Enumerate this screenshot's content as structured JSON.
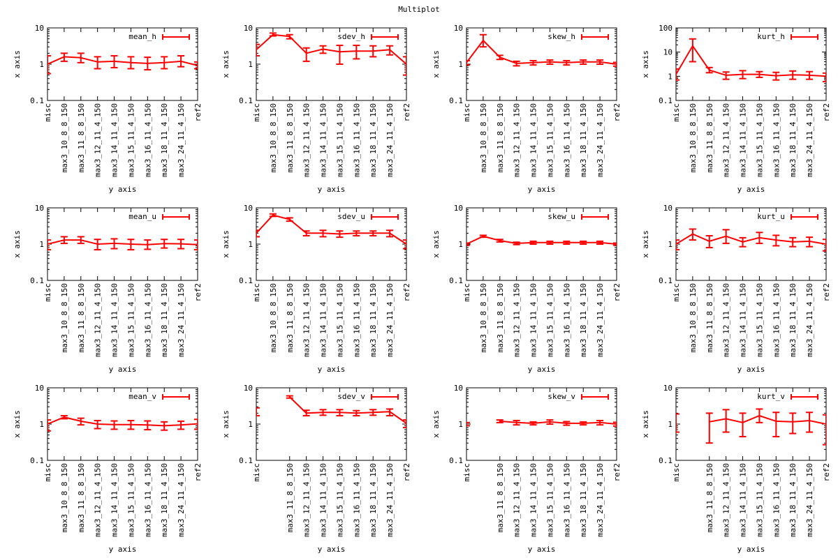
{
  "page": {
    "title": "Multiplot"
  },
  "style": {
    "series_color": "#ff0000",
    "axis_color": "#000000",
    "background": "#ffffff"
  },
  "chart_data": [
    {
      "type": "line",
      "legend": "mean_h",
      "legend_position": "top-right",
      "xlabel": "y axis",
      "ylabel": "x axis",
      "yscale": "log",
      "ylim": [
        0.1,
        10
      ],
      "yticks": [
        "0.1",
        "1",
        "10"
      ],
      "grid": false,
      "categories": [
        "misc",
        "max3_10_8_8_150",
        "max3_11_8_8_150",
        "max3_12_11_4_150",
        "max3_14_11_4_150",
        "max3_15_11_4_150",
        "max3_16_11_4_150",
        "max3_18_11_4_150",
        "max3_24_11_4_150",
        "ref2"
      ],
      "values": [
        1.0,
        1.6,
        1.5,
        1.15,
        1.2,
        1.1,
        1.05,
        1.1,
        1.2,
        0.92
      ],
      "err_low": [
        0.55,
        1.2,
        1.1,
        0.75,
        0.8,
        0.75,
        0.7,
        0.75,
        0.85,
        0.75
      ],
      "err_high": [
        1.7,
        2.0,
        2.0,
        1.6,
        1.7,
        1.6,
        1.55,
        1.6,
        1.7,
        1.15
      ]
    },
    {
      "type": "line",
      "legend": "sdev_h",
      "legend_position": "top-right",
      "xlabel": "y axis",
      "ylabel": "x axis",
      "yscale": "log",
      "ylim": [
        0.1,
        10
      ],
      "yticks": [
        "0.1",
        "1",
        "10"
      ],
      "grid": false,
      "categories": [
        "misc",
        "max3_10_8_8_150",
        "max3_11_8_8_150",
        "max3_12_11_4_150",
        "max3_14_11_4_150",
        "max3_15_11_4_150",
        "max3_16_11_4_150",
        "max3_18_11_4_150",
        "max3_24_11_4_150",
        "ref2"
      ],
      "values": [
        2.5,
        6.5,
        5.8,
        2.0,
        2.6,
        2.2,
        2.3,
        2.3,
        2.5,
        1.0
      ],
      "err_low": [
        1.7,
        6.0,
        5.0,
        1.2,
        2.0,
        1.0,
        1.4,
        1.6,
        1.8,
        0.5
      ],
      "err_high": [
        3.5,
        7.2,
        6.5,
        2.8,
        3.2,
        3.3,
        3.3,
        3.2,
        3.2,
        1.6
      ]
    },
    {
      "type": "line",
      "legend": "skew_h",
      "legend_position": "top-right",
      "xlabel": "y axis",
      "ylabel": "x axis",
      "yscale": "log",
      "ylim": [
        0.1,
        10
      ],
      "yticks": [
        "0.1",
        "1",
        "10"
      ],
      "grid": false,
      "categories": [
        "misc",
        "max3_10_8_8_150",
        "max3_11_8_8_150",
        "max3_12_11_4_150",
        "max3_14_11_4_150",
        "max3_15_11_4_150",
        "max3_16_11_4_150",
        "max3_18_11_4_150",
        "max3_24_11_4_150",
        "ref2"
      ],
      "values": [
        1.1,
        4.5,
        1.55,
        1.05,
        1.1,
        1.15,
        1.1,
        1.15,
        1.15,
        1.0
      ],
      "err_low": [
        0.95,
        3.0,
        1.35,
        0.9,
        0.95,
        1.0,
        0.95,
        1.0,
        1.0,
        0.88
      ],
      "err_high": [
        1.25,
        6.5,
        1.75,
        1.2,
        1.25,
        1.3,
        1.25,
        1.3,
        1.3,
        1.12
      ]
    },
    {
      "type": "line",
      "legend": "kurt_h",
      "legend_position": "top-right",
      "xlabel": "y axis",
      "ylabel": "x axis",
      "yscale": "log",
      "ylim": [
        0.1,
        100
      ],
      "yticks": [
        "0.1",
        "1",
        "10",
        "100"
      ],
      "grid": false,
      "categories": [
        "misc",
        "max3_10_8_8_150",
        "max3_11_8_8_150",
        "max3_12_11_4_150",
        "max3_14_11_4_150",
        "max3_15_11_4_150",
        "max3_16_11_4_150",
        "max3_18_11_4_150",
        "max3_24_11_4_150",
        "ref2"
      ],
      "values": [
        1.2,
        18,
        1.8,
        1.1,
        1.2,
        1.2,
        1.05,
        1.15,
        1.1,
        1.0
      ],
      "err_low": [
        0.7,
        4.0,
        1.4,
        0.75,
        0.8,
        0.9,
        0.7,
        0.75,
        0.75,
        0.6
      ],
      "err_high": [
        2.0,
        35,
        2.3,
        1.5,
        1.7,
        1.55,
        1.45,
        1.65,
        1.55,
        1.35
      ]
    },
    {
      "type": "line",
      "legend": "mean_u",
      "legend_position": "top-right",
      "xlabel": "y axis",
      "ylabel": "x axis",
      "yscale": "log",
      "ylim": [
        0.1,
        10
      ],
      "yticks": [
        "0.1",
        "1",
        "10"
      ],
      "grid": false,
      "categories": [
        "misc",
        "max3_10_8_8_150",
        "max3_11_8_8_150",
        "max3_12_11_4_150",
        "max3_14_11_4_150",
        "max3_15_11_4_150",
        "max3_16_11_4_150",
        "max3_18_11_4_150",
        "max3_24_11_4_150",
        "ref2"
      ],
      "values": [
        1.0,
        1.3,
        1.3,
        1.0,
        1.05,
        1.0,
        0.97,
        1.03,
        1.02,
        0.97
      ],
      "err_low": [
        0.7,
        1.05,
        1.05,
        0.7,
        0.75,
        0.7,
        0.72,
        0.78,
        0.75,
        0.7
      ],
      "err_high": [
        1.3,
        1.6,
        1.6,
        1.35,
        1.4,
        1.35,
        1.3,
        1.35,
        1.35,
        1.3
      ]
    },
    {
      "type": "line",
      "legend": "sdev_u",
      "legend_position": "top-right",
      "xlabel": "y axis",
      "ylabel": "x axis",
      "yscale": "log",
      "ylim": [
        0.1,
        10
      ],
      "yticks": [
        "0.1",
        "1",
        "10"
      ],
      "grid": false,
      "categories": [
        "misc",
        "max3_10_8_8_150",
        "max3_11_8_8_150",
        "max3_12_11_4_150",
        "max3_14_11_4_150",
        "max3_15_11_4_150",
        "max3_16_11_4_150",
        "max3_18_11_4_150",
        "max3_24_11_4_150",
        "ref2"
      ],
      "values": [
        2.0,
        6.3,
        4.8,
        2.0,
        2.0,
        1.9,
        2.0,
        2.0,
        2.0,
        1.0
      ],
      "err_low": [
        1.6,
        5.8,
        4.3,
        1.7,
        1.6,
        1.55,
        1.7,
        1.7,
        1.6,
        0.75
      ],
      "err_high": [
        2.4,
        6.8,
        5.3,
        2.3,
        2.4,
        2.3,
        2.3,
        2.3,
        2.4,
        1.3
      ]
    },
    {
      "type": "line",
      "legend": "skew_u",
      "legend_position": "top-right",
      "xlabel": "y axis",
      "ylabel": "x axis",
      "yscale": "log",
      "ylim": [
        0.1,
        10
      ],
      "yticks": [
        "0.1",
        "1",
        "10"
      ],
      "grid": false,
      "categories": [
        "misc",
        "max3_10_8_8_150",
        "max3_11_8_8_150",
        "max3_12_11_4_150",
        "max3_14_11_4_150",
        "max3_15_11_4_150",
        "max3_16_11_4_150",
        "max3_18_11_4_150",
        "max3_24_11_4_150",
        "ref2"
      ],
      "values": [
        1.0,
        1.65,
        1.25,
        1.05,
        1.1,
        1.1,
        1.1,
        1.1,
        1.1,
        1.0
      ],
      "err_low": [
        0.93,
        1.55,
        1.15,
        0.97,
        1.0,
        1.0,
        1.0,
        1.0,
        1.0,
        0.93
      ],
      "err_high": [
        1.07,
        1.75,
        1.35,
        1.13,
        1.2,
        1.2,
        1.2,
        1.2,
        1.2,
        1.07
      ]
    },
    {
      "type": "line",
      "legend": "kurt_u",
      "legend_position": "top-right",
      "xlabel": "y axis",
      "ylabel": "x axis",
      "yscale": "log",
      "ylim": [
        0.1,
        10
      ],
      "yticks": [
        "0.1",
        "1",
        "10"
      ],
      "grid": false,
      "categories": [
        "misc",
        "max3_10_8_8_150",
        "max3_11_8_8_150",
        "max3_12_11_4_150",
        "max3_14_11_4_150",
        "max3_15_11_4_150",
        "max3_16_11_4_150",
        "max3_18_11_4_150",
        "max3_24_11_4_150",
        "ref2"
      ],
      "values": [
        1.0,
        1.9,
        1.2,
        1.65,
        1.15,
        1.5,
        1.3,
        1.15,
        1.2,
        1.0
      ],
      "err_low": [
        0.7,
        1.3,
        0.8,
        1.05,
        0.85,
        1.05,
        0.9,
        0.85,
        0.85,
        0.65
      ],
      "err_high": [
        1.3,
        2.6,
        1.7,
        2.5,
        1.5,
        2.1,
        1.75,
        1.5,
        1.55,
        1.35
      ]
    },
    {
      "type": "line",
      "legend": "mean_v",
      "legend_position": "top-right",
      "xlabel": "y axis",
      "ylabel": "x axis",
      "yscale": "log",
      "ylim": [
        0.1,
        10
      ],
      "yticks": [
        "0.1",
        "1",
        "10"
      ],
      "grid": false,
      "categories": [
        "misc",
        "max3_10_8_8_150",
        "max3_11_8_8_150",
        "max3_12_11_4_150",
        "max3_14_11_4_150",
        "max3_15_11_4_150",
        "max3_16_11_4_150",
        "max3_18_11_4_150",
        "max3_24_11_4_150",
        "ref2"
      ],
      "values": [
        1.0,
        1.55,
        1.2,
        1.0,
        0.97,
        0.97,
        0.95,
        0.9,
        0.95,
        1.02
      ],
      "err_low": [
        0.65,
        1.4,
        0.95,
        0.75,
        0.72,
        0.72,
        0.7,
        0.68,
        0.72,
        0.72
      ],
      "err_high": [
        1.3,
        1.7,
        1.45,
        1.25,
        1.22,
        1.25,
        1.22,
        1.15,
        1.2,
        1.35
      ]
    },
    {
      "type": "line",
      "legend": "sdev_v",
      "legend_position": "top-right",
      "xlabel": "y axis",
      "ylabel": "x axis",
      "yscale": "log",
      "ylim": [
        0.1,
        10
      ],
      "yticks": [
        "0.1",
        "1",
        "10"
      ],
      "grid": false,
      "categories": [
        "misc",
        "max3_11_8_8_150",
        "max3_12_11_4_150",
        "max3_14_11_4_150",
        "max3_15_11_4_150",
        "max3_16_11_4_150",
        "max3_18_11_4_150",
        "max3_24_11_4_150",
        "ref2"
      ],
      "positions": [
        0,
        2,
        3,
        4,
        5,
        6,
        7,
        8,
        9
      ],
      "values": [
        null,
        5.6,
        2.0,
        2.1,
        2.1,
        2.0,
        2.1,
        2.2,
        1.05
      ],
      "err_low": [
        1.7,
        5.2,
        1.7,
        1.75,
        1.7,
        1.7,
        1.75,
        1.7,
        0.8
      ],
      "err_high": [
        2.8,
        6.0,
        2.4,
        2.5,
        2.5,
        2.35,
        2.5,
        2.6,
        1.3
      ]
    },
    {
      "type": "line",
      "legend": "skew_v",
      "legend_position": "top-right",
      "xlabel": "y axis",
      "ylabel": "x axis",
      "yscale": "log",
      "ylim": [
        0.1,
        10
      ],
      "yticks": [
        "0.1",
        "1",
        "10"
      ],
      "grid": false,
      "categories": [
        "misc",
        "max3_11_8_8_150",
        "max3_12_11_4_150",
        "max3_14_11_4_150",
        "max3_15_11_4_150",
        "max3_16_11_4_150",
        "max3_18_11_4_150",
        "max3_24_11_4_150",
        "ref2"
      ],
      "positions": [
        0,
        2,
        3,
        4,
        5,
        6,
        7,
        8,
        9
      ],
      "values": [
        null,
        1.2,
        1.1,
        1.05,
        1.15,
        1.05,
        1.05,
        1.1,
        1.0
      ],
      "err_low": [
        0.9,
        1.1,
        0.95,
        0.95,
        1.0,
        0.93,
        0.95,
        0.95,
        0.88
      ],
      "err_high": [
        1.1,
        1.3,
        1.25,
        1.15,
        1.3,
        1.17,
        1.15,
        1.25,
        1.12
      ]
    },
    {
      "type": "line",
      "legend": "kurt_v",
      "legend_position": "top-right",
      "xlabel": "y axis",
      "ylabel": "x axis",
      "yscale": "log",
      "ylim": [
        0.1,
        10
      ],
      "yticks": [
        "0.1",
        "1",
        "10"
      ],
      "grid": false,
      "categories": [
        "misc",
        "max3_11_8_8_150",
        "max3_12_11_4_150",
        "max3_14_11_4_150",
        "max3_15_11_4_150",
        "max3_16_11_4_150",
        "max3_18_11_4_150",
        "max3_24_11_4_150",
        "ref2"
      ],
      "positions": [
        0,
        2,
        3,
        4,
        5,
        6,
        7,
        8,
        9
      ],
      "values": [
        null,
        1.15,
        1.4,
        1.1,
        1.7,
        1.2,
        1.15,
        1.25,
        1.0
      ],
      "err_low": [
        0.6,
        0.3,
        0.6,
        0.45,
        1.1,
        0.45,
        0.55,
        0.6,
        0.27
      ],
      "err_high": [
        1.9,
        2.0,
        2.5,
        2.0,
        2.6,
        2.1,
        2.0,
        2.1,
        1.8
      ]
    }
  ]
}
